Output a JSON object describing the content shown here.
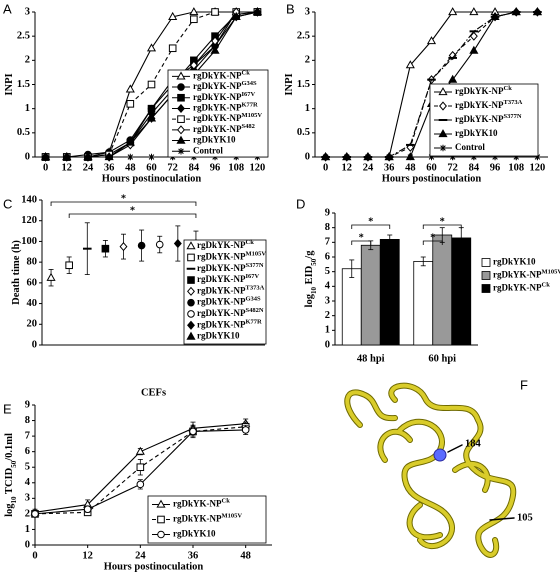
{
  "chart_data": [
    {
      "panel": "A",
      "type": "line",
      "ylabel": [
        {
          "text": "INPI"
        }
      ],
      "xlabel": "Hours postinoculation",
      "x": [
        0,
        12,
        24,
        36,
        48,
        60,
        72,
        84,
        96,
        108,
        120
      ],
      "xlim": [
        -6,
        126
      ],
      "xticks": [
        0,
        12,
        24,
        36,
        48,
        60,
        72,
        84,
        96,
        108,
        120
      ],
      "ylim": [
        0,
        3
      ],
      "yticks": [
        0,
        0.5,
        1,
        1.5,
        2,
        2.5,
        3
      ],
      "legend": "lower right",
      "series": [
        {
          "name": "rgDkYK-NP",
          "name_sup": "Ck",
          "color": "#000000",
          "marker": "triangle-open",
          "dash": "solid",
          "values": [
            0,
            0,
            0,
            0.1,
            1.4,
            2.25,
            2.9,
            3,
            3,
            3,
            3
          ]
        },
        {
          "name": "rgDkYK-NP",
          "name_sup": "G34S",
          "color": "#000000",
          "marker": "circle",
          "dash": "solid",
          "values": [
            0,
            0,
            0.05,
            0.1,
            0.35,
            1.0,
            1.6,
            1.9,
            2.3,
            3,
            3
          ]
        },
        {
          "name": "rgDkYK-NP",
          "name_sup": "I67V",
          "color": "#000000",
          "marker": "square",
          "dash": "solid",
          "values": [
            0,
            0,
            0,
            0.05,
            0.3,
            1.0,
            1.5,
            2.0,
            2.5,
            2.95,
            3
          ]
        },
        {
          "name": "rgDkYK-NP",
          "name_sup": "K77R",
          "color": "#000000",
          "marker": "diamond",
          "dash": "solid",
          "values": [
            0,
            0,
            0,
            0,
            0.3,
            0.9,
            1.4,
            1.8,
            2.3,
            2.9,
            3
          ]
        },
        {
          "name": "rgDkYK-NP",
          "name_sup": "M105V",
          "color": "#000000",
          "marker": "square-open",
          "dash": "dashed",
          "values": [
            0,
            0,
            0,
            0.05,
            1.1,
            1.5,
            2.25,
            2.85,
            3,
            3,
            3
          ]
        },
        {
          "name": "rgDkYK-NP",
          "name_sup": "S482",
          "color": "#000000",
          "marker": "diamond-open",
          "dash": "solid",
          "values": [
            0,
            0,
            0,
            0,
            0.25,
            0.8,
            1.3,
            1.9,
            2.4,
            3,
            3
          ]
        },
        {
          "name": "rgDkYK10",
          "color": "#000000",
          "marker": "triangle",
          "dash": "solid",
          "values": [
            0,
            0,
            0,
            0,
            0.3,
            0.8,
            1.3,
            1.7,
            2.2,
            2.9,
            3
          ]
        },
        {
          "name": "Control",
          "color": "#000000",
          "marker": "asterisk",
          "dash": "solid",
          "values": [
            0,
            0,
            0,
            0,
            0,
            0,
            0,
            0,
            0,
            0,
            0
          ]
        }
      ]
    },
    {
      "panel": "B",
      "type": "line",
      "ylabel": [
        {
          "text": "INPI"
        }
      ],
      "xlabel": "Hours postinoculation",
      "x": [
        0,
        12,
        24,
        36,
        48,
        60,
        72,
        84,
        96,
        108,
        120
      ],
      "xlim": [
        -6,
        126
      ],
      "xticks": [
        0,
        12,
        24,
        36,
        48,
        60,
        72,
        84,
        96,
        108,
        120
      ],
      "ylim": [
        0,
        3
      ],
      "yticks": [
        0,
        0.5,
        1,
        1.5,
        2,
        2.5,
        3
      ],
      "legend": "lower right",
      "series": [
        {
          "name": "rgDkYK-NP",
          "name_sup": "Ck",
          "color": "#000000",
          "marker": "triangle-open",
          "dash": "solid",
          "values": [
            0,
            0,
            0,
            0,
            1.9,
            2.4,
            3,
            3,
            3,
            3,
            3
          ]
        },
        {
          "name": "rgDkYK-NP",
          "name_sup": "T373A",
          "color": "#000000",
          "marker": "diamond-open",
          "dash": "dashed",
          "values": [
            0,
            0,
            0,
            0,
            0.2,
            1.6,
            2.1,
            2.5,
            2.9,
            3,
            3
          ]
        },
        {
          "name": "rgDkYK-NP",
          "name_sup": "S377N",
          "color": "#000000",
          "marker": "dash",
          "dash": "dashdot",
          "values": [
            0,
            0,
            0,
            0,
            0.25,
            1.6,
            2.05,
            2.6,
            2.9,
            3,
            3
          ]
        },
        {
          "name": "rgDkYK10",
          "color": "#000000",
          "marker": "triangle",
          "dash": "solid",
          "values": [
            0,
            0,
            0,
            0,
            0,
            1.1,
            1.6,
            2.2,
            2.9,
            3,
            3
          ]
        },
        {
          "name": "Control",
          "color": "#000000",
          "marker": "asterisk",
          "dash": "solid",
          "values": [
            0,
            0,
            0,
            0,
            0,
            0,
            0,
            0,
            0,
            0,
            0
          ]
        }
      ]
    },
    {
      "panel": "C",
      "type": "scatter",
      "ylabel": [
        {
          "text": "Death time (h)"
        }
      ],
      "ylim": [
        0,
        140
      ],
      "yticks": [
        0,
        20,
        40,
        60,
        80,
        100,
        120,
        140
      ],
      "legend": "right",
      "annotations": [
        "*",
        "*"
      ],
      "series": [
        {
          "name": "rgDkYK-NP",
          "name_sup": "Ck",
          "color": "#000000",
          "marker": "triangle-open",
          "values": [
            65
          ],
          "errors": [
            8
          ]
        },
        {
          "name": "rgDkYK-NP",
          "name_sup": "M105V",
          "color": "#000000",
          "marker": "square-open",
          "values": [
            77
          ],
          "errors": [
            8
          ]
        },
        {
          "name": "rgDkYK-NP",
          "name_sup": "S377N",
          "color": "#000000",
          "marker": "dash",
          "values": [
            93
          ],
          "errors": [
            25
          ]
        },
        {
          "name": "rgDkYK-NP",
          "name_sup": "I67V",
          "color": "#000000",
          "marker": "square",
          "values": [
            93
          ],
          "errors": [
            8
          ]
        },
        {
          "name": "rgDkYK-NP",
          "name_sup": "T373A",
          "color": "#000000",
          "marker": "diamond-open",
          "values": [
            95
          ],
          "errors": [
            12
          ]
        },
        {
          "name": "rgDkYK-NP",
          "name_sup": "G34S",
          "color": "#000000",
          "marker": "circle",
          "values": [
            96
          ],
          "errors": [
            15
          ]
        },
        {
          "name": "rgDkYK-NP",
          "name_sup": "S482N",
          "color": "#000000",
          "marker": "circle-open",
          "values": [
            97
          ],
          "errors": [
            8
          ]
        },
        {
          "name": "rgDkYK-NP",
          "name_sup": "K77R",
          "color": "#000000",
          "marker": "diamond",
          "values": [
            98
          ],
          "errors": [
            17
          ]
        },
        {
          "name": "rgDkYK10",
          "color": "#000000",
          "marker": "triangle",
          "values": [
            98
          ],
          "errors": [
            12
          ]
        }
      ]
    },
    {
      "panel": "D",
      "type": "bar",
      "ylabel": [
        {
          "text": "log"
        },
        {
          "text": "10",
          "sub": true
        },
        {
          "text": " EID"
        },
        {
          "text": "50",
          "sub": true
        },
        {
          "text": "/g"
        }
      ],
      "categories": [
        "48 hpi",
        "60 hpi"
      ],
      "ylim": [
        0,
        9
      ],
      "yticks": [
        0,
        1,
        2,
        3,
        4,
        5,
        6,
        7,
        8,
        9
      ],
      "legend": "right",
      "annotations": [
        "*",
        "*",
        "*",
        "*"
      ],
      "series": [
        {
          "name": "rgDkYK10",
          "color": "#ffffff",
          "values": [
            5.2,
            5.7
          ],
          "errors": [
            0.6,
            0.3
          ]
        },
        {
          "name": "rgDkYK-NP",
          "name_sup": "M105V",
          "color": "#999999",
          "values": [
            6.8,
            7.5
          ],
          "errors": [
            0.3,
            0.5
          ]
        },
        {
          "name": "rgDkYK-NP",
          "name_sup": "Ck",
          "color": "#000000",
          "values": [
            7.2,
            7.3
          ],
          "errors": [
            0.3,
            0.7
          ]
        }
      ]
    },
    {
      "panel": "E",
      "type": "line",
      "title": "CEFs",
      "ylabel": [
        {
          "text": "log"
        },
        {
          "text": "10",
          "sub": true
        },
        {
          "text": " TCID"
        },
        {
          "text": "50",
          "sub": true
        },
        {
          "text": "/0.1ml"
        }
      ],
      "xlabel": "Hours postinoculation",
      "x": [
        0,
        12,
        24,
        36,
        48
      ],
      "xlim": [
        0,
        54
      ],
      "xticks": [
        0,
        12,
        24,
        36,
        48
      ],
      "ylim": [
        0,
        9
      ],
      "yticks": [
        0,
        1,
        2,
        3,
        4,
        5,
        6,
        7,
        8,
        9
      ],
      "legend": "lower right",
      "series": [
        {
          "name": "rgDkYK-NP",
          "name_sup": "Ck",
          "color": "#000000",
          "marker": "triangle-open",
          "dash": "solid",
          "values": [
            2.1,
            2.6,
            6.0,
            7.5,
            7.8
          ],
          "errors": [
            0.2,
            0.3,
            0.2,
            0.4,
            0.3
          ]
        },
        {
          "name": "rgDkYK-NP",
          "name_sup": "M105V",
          "color": "#000000",
          "marker": "square-open",
          "dash": "dashed",
          "values": [
            2.0,
            2.1,
            5.0,
            7.3,
            7.6
          ],
          "errors": [
            0.2,
            0.2,
            0.5,
            0.3,
            0.3
          ]
        },
        {
          "name": "rgDkYK10",
          "color": "#000000",
          "marker": "circle-open",
          "dash": "solid",
          "values": [
            2.0,
            2.3,
            3.9,
            7.3,
            7.4
          ],
          "errors": [
            0.2,
            0.2,
            0.3,
            0.4,
            0.3
          ]
        }
      ]
    }
  ],
  "structure": {
    "panel": "F",
    "labels": [
      "184",
      "105"
    ]
  }
}
